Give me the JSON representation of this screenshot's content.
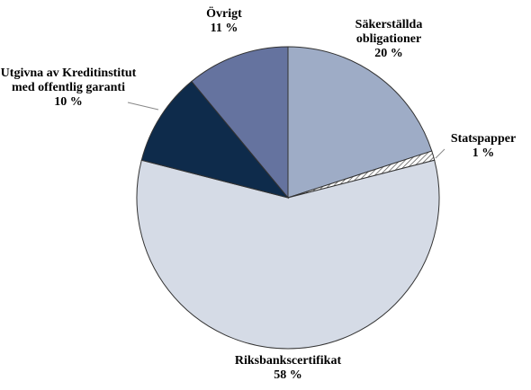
{
  "chart_data": {
    "type": "pie",
    "categories": [
      "Säkerställda obligationer",
      "Statspapper",
      "Riksbankscertifikat",
      "Utgivna av Kreditinstitut med offentlig garanti",
      "Övrigt"
    ],
    "values": [
      20,
      1,
      58,
      10,
      11
    ],
    "value_labels": [
      "20 %",
      "1 %",
      "58 %",
      "10 %",
      "11 %"
    ],
    "colors": [
      "#9eacc6",
      "url(#hatch)",
      "#d5dbe6",
      "#0e2b4b",
      "#65739f"
    ]
  }
}
